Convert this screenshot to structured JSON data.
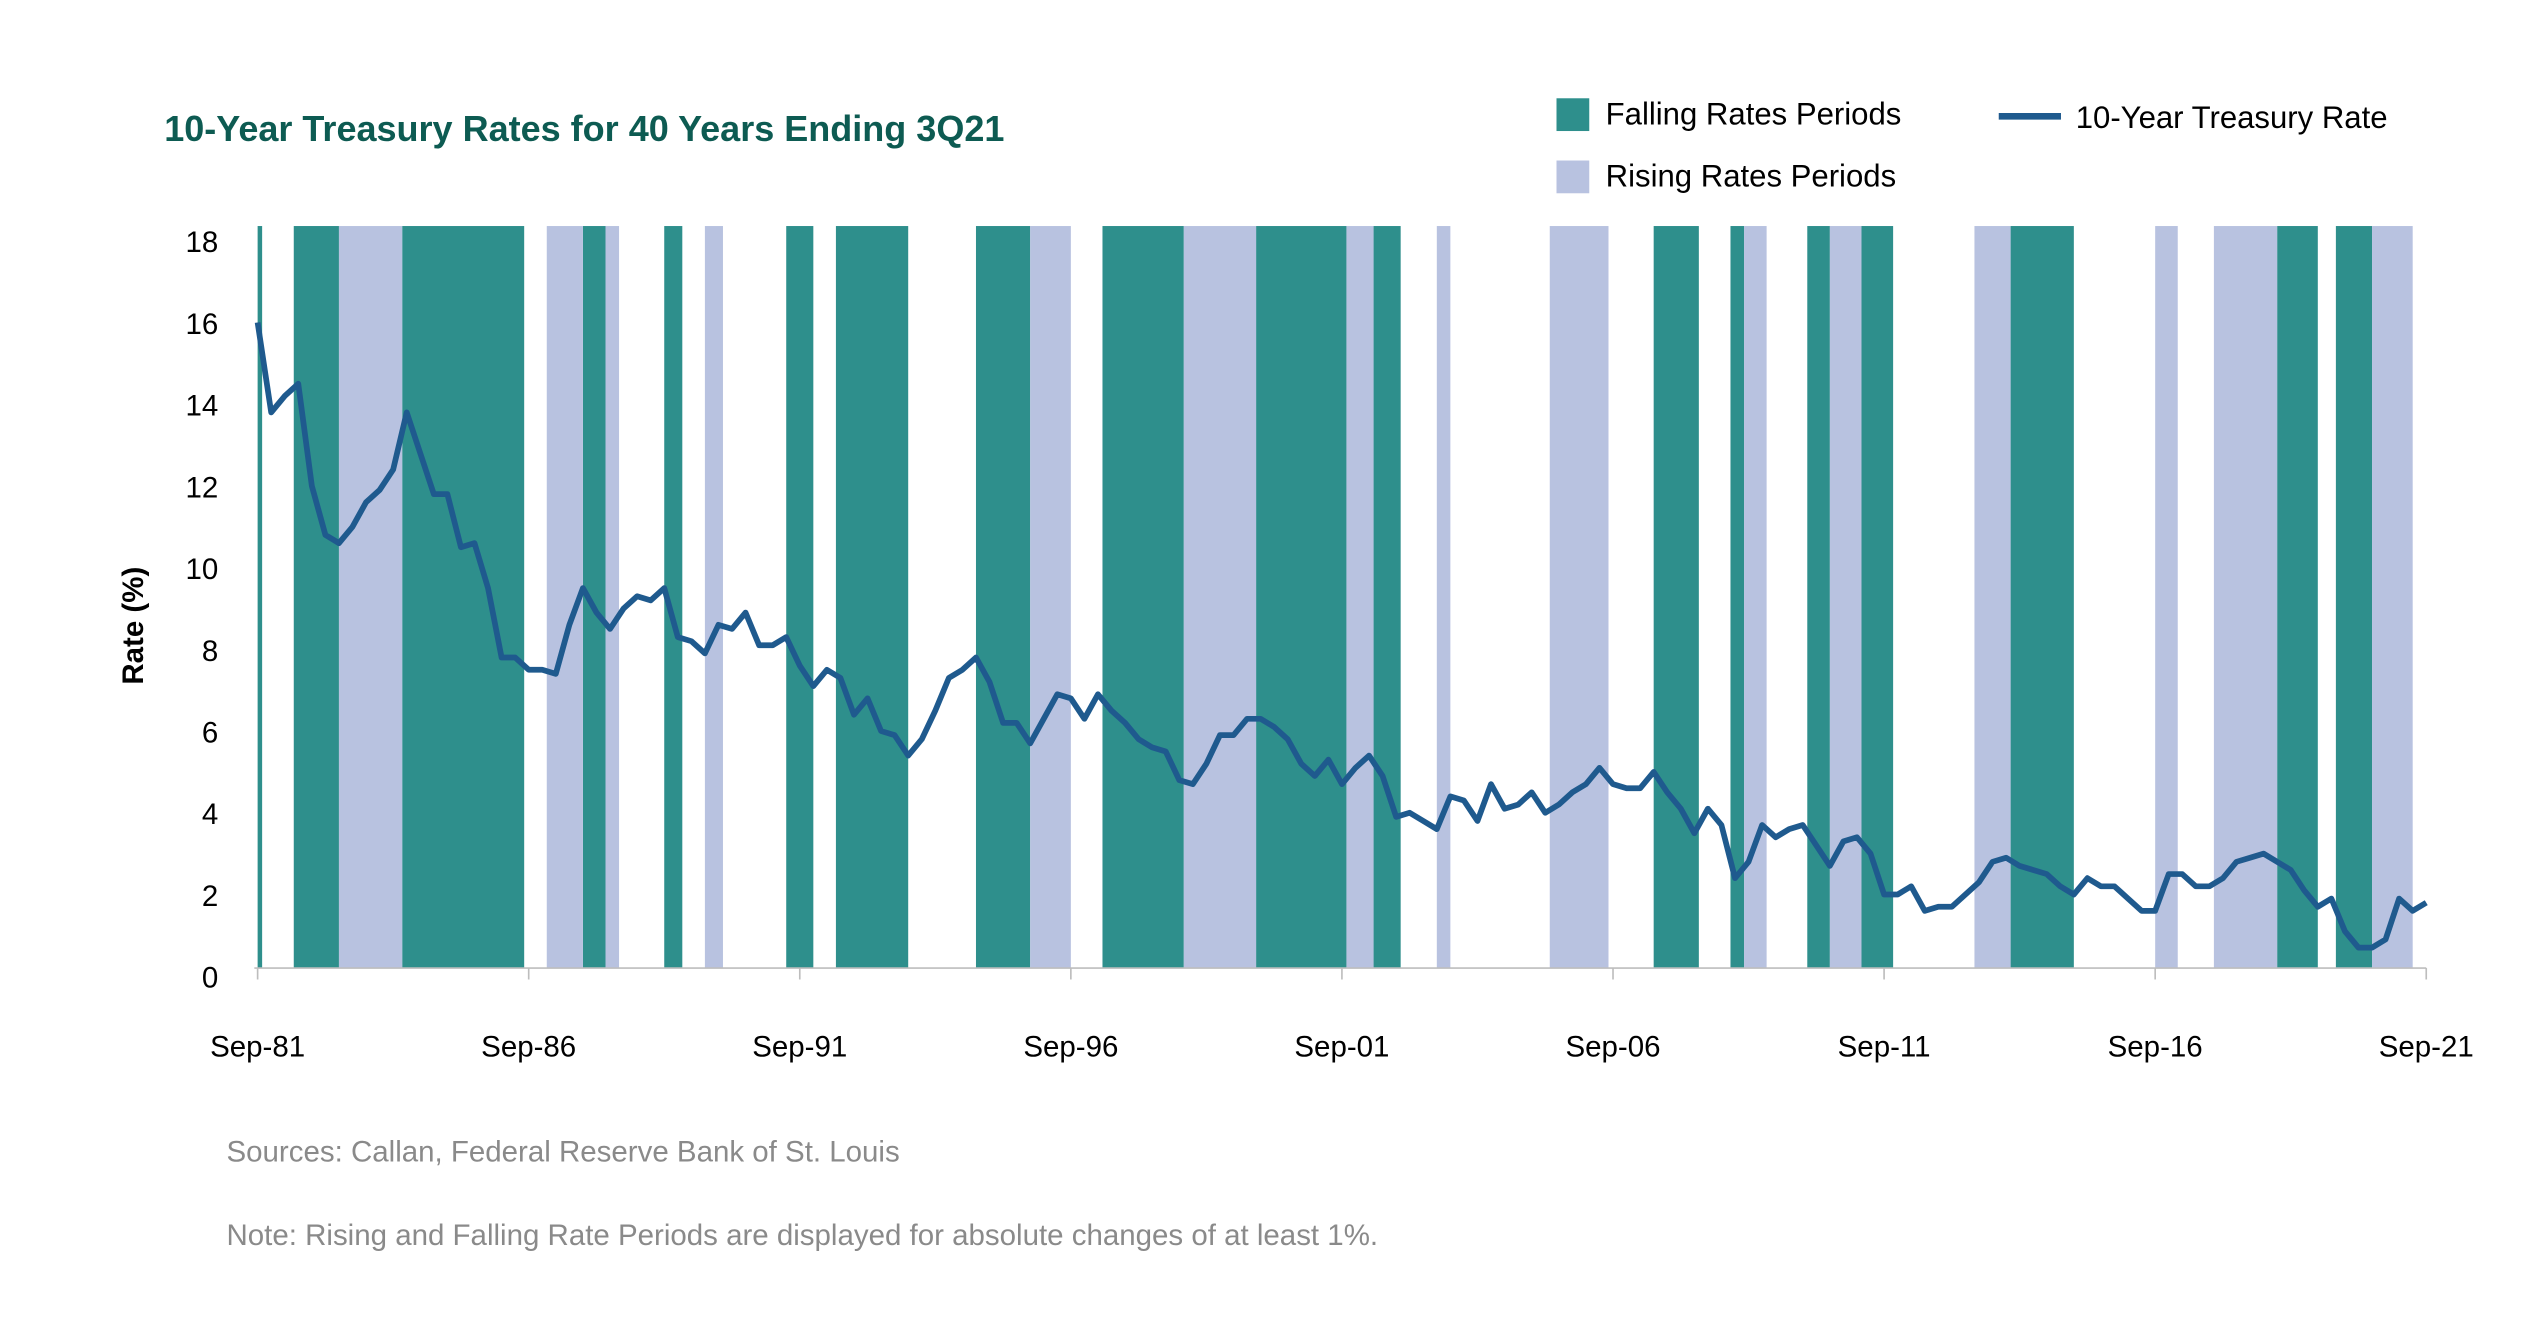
{
  "chart_data": {
    "type": "line",
    "title": "10-Year Treasury Rates for 40 Years Ending 3Q21",
    "y_label": "Rate (%)",
    "xlim": [
      "1981-09",
      "2021-09"
    ],
    "xticks": [
      {
        "value": "1981-09",
        "label": "Sep-81"
      },
      {
        "value": "1986-09",
        "label": "Sep-86"
      },
      {
        "value": "1991-09",
        "label": "Sep-91"
      },
      {
        "value": "1996-09",
        "label": "Sep-96"
      },
      {
        "value": "2001-09",
        "label": "Sep-01"
      },
      {
        "value": "2006-09",
        "label": "Sep-06"
      },
      {
        "value": "2011-09",
        "label": "Sep-11"
      },
      {
        "value": "2016-09",
        "label": "Sep-16"
      },
      {
        "value": "2021-09",
        "label": "Sep-21"
      }
    ],
    "ylim": [
      0,
      18
    ],
    "yticks": [
      0,
      2,
      4,
      6,
      8,
      10,
      12,
      14,
      16,
      18
    ],
    "x": [
      "1981-09",
      "1981-12",
      "1982-03",
      "1982-06",
      "1982-09",
      "1982-12",
      "1983-03",
      "1983-06",
      "1983-09",
      "1983-12",
      "1984-03",
      "1984-06",
      "1984-09",
      "1984-12",
      "1985-03",
      "1985-06",
      "1985-09",
      "1985-12",
      "1986-03",
      "1986-06",
      "1986-09",
      "1986-12",
      "1987-03",
      "1987-06",
      "1987-09",
      "1987-12",
      "1988-03",
      "1988-06",
      "1988-09",
      "1988-12",
      "1989-03",
      "1989-06",
      "1989-09",
      "1989-12",
      "1990-03",
      "1990-06",
      "1990-09",
      "1990-12",
      "1991-03",
      "1991-06",
      "1991-09",
      "1991-12",
      "1992-03",
      "1992-06",
      "1992-09",
      "1992-12",
      "1993-03",
      "1993-06",
      "1993-09",
      "1993-12",
      "1994-03",
      "1994-06",
      "1994-09",
      "1994-12",
      "1995-03",
      "1995-06",
      "1995-09",
      "1995-12",
      "1996-03",
      "1996-06",
      "1996-09",
      "1996-12",
      "1997-03",
      "1997-06",
      "1997-09",
      "1997-12",
      "1998-03",
      "1998-06",
      "1998-09",
      "1998-12",
      "1999-03",
      "1999-06",
      "1999-09",
      "1999-12",
      "2000-03",
      "2000-06",
      "2000-09",
      "2000-12",
      "2001-03",
      "2001-06",
      "2001-09",
      "2001-12",
      "2002-03",
      "2002-06",
      "2002-09",
      "2002-12",
      "2003-03",
      "2003-06",
      "2003-09",
      "2003-12",
      "2004-03",
      "2004-06",
      "2004-09",
      "2004-12",
      "2005-03",
      "2005-06",
      "2005-09",
      "2005-12",
      "2006-03",
      "2006-06",
      "2006-09",
      "2006-12",
      "2007-03",
      "2007-06",
      "2007-09",
      "2007-12",
      "2008-03",
      "2008-06",
      "2008-09",
      "2008-12",
      "2009-03",
      "2009-06",
      "2009-09",
      "2009-12",
      "2010-03",
      "2010-06",
      "2010-09",
      "2010-12",
      "2011-03",
      "2011-06",
      "2011-09",
      "2011-12",
      "2012-03",
      "2012-06",
      "2012-09",
      "2012-12",
      "2013-03",
      "2013-06",
      "2013-09",
      "2013-12",
      "2014-03",
      "2014-06",
      "2014-09",
      "2014-12",
      "2015-03",
      "2015-06",
      "2015-09",
      "2015-12",
      "2016-03",
      "2016-06",
      "2016-09",
      "2016-12",
      "2017-03",
      "2017-06",
      "2017-09",
      "2017-12",
      "2018-03",
      "2018-06",
      "2018-09",
      "2018-12",
      "2019-03",
      "2019-06",
      "2019-09",
      "2019-12",
      "2020-03",
      "2020-06",
      "2020-09",
      "2020-12",
      "2021-03",
      "2021-06",
      "2021-09"
    ],
    "series": [
      {
        "name": "10-Year Treasury Rate",
        "color": "#1f5a8e",
        "values": [
          16.0,
          13.8,
          14.2,
          14.5,
          12.0,
          10.8,
          10.6,
          11.0,
          11.6,
          11.9,
          12.4,
          13.8,
          12.8,
          11.8,
          11.8,
          10.5,
          10.6,
          9.5,
          7.8,
          7.8,
          7.5,
          7.5,
          7.4,
          8.6,
          9.5,
          8.9,
          8.5,
          9.0,
          9.3,
          9.2,
          9.5,
          8.3,
          8.2,
          7.9,
          8.6,
          8.5,
          8.9,
          8.1,
          8.1,
          8.3,
          7.6,
          7.1,
          7.5,
          7.3,
          6.4,
          6.8,
          6.0,
          5.9,
          5.4,
          5.8,
          6.5,
          7.3,
          7.5,
          7.8,
          7.2,
          6.2,
          6.2,
          5.7,
          6.3,
          6.9,
          6.8,
          6.3,
          6.9,
          6.5,
          6.2,
          5.8,
          5.6,
          5.5,
          4.8,
          4.7,
          5.2,
          5.9,
          5.9,
          6.3,
          6.3,
          6.1,
          5.8,
          5.2,
          4.9,
          5.3,
          4.7,
          5.1,
          5.4,
          4.9,
          3.9,
          4.0,
          3.8,
          3.6,
          4.4,
          4.3,
          3.8,
          4.7,
          4.1,
          4.2,
          4.5,
          4.0,
          4.2,
          4.5,
          4.7,
          5.1,
          4.7,
          4.6,
          4.6,
          5.0,
          4.5,
          4.1,
          3.5,
          4.1,
          3.7,
          2.4,
          2.8,
          3.7,
          3.4,
          3.6,
          3.7,
          3.2,
          2.7,
          3.3,
          3.4,
          3.0,
          2.0,
          2.0,
          2.2,
          1.6,
          1.7,
          1.7,
          2.0,
          2.3,
          2.8,
          2.9,
          2.7,
          2.6,
          2.5,
          2.2,
          2.0,
          2.4,
          2.2,
          2.2,
          1.9,
          1.6,
          1.6,
          2.5,
          2.5,
          2.2,
          2.2,
          2.4,
          2.8,
          2.9,
          3.0,
          2.8,
          2.6,
          2.1,
          1.7,
          1.9,
          1.1,
          0.7,
          0.7,
          0.9,
          1.9,
          1.6,
          1.8
        ]
      }
    ],
    "periods": [
      {
        "name": "Falling Rates Periods",
        "color": "#2e8f8c",
        "ranges": [
          [
            "1981-09",
            "1981-10"
          ],
          [
            "1982-05",
            "1983-03"
          ],
          [
            "1984-05",
            "1986-08"
          ],
          [
            "1987-09",
            "1988-02"
          ],
          [
            "1989-03",
            "1989-07"
          ],
          [
            "1991-06",
            "1991-12"
          ],
          [
            "1992-05",
            "1993-09"
          ],
          [
            "1994-12",
            "1995-12"
          ],
          [
            "1997-04",
            "1998-10"
          ],
          [
            "2000-02",
            "2001-10"
          ],
          [
            "2002-04",
            "2002-10"
          ],
          [
            "2007-06",
            "2008-04"
          ],
          [
            "2008-11",
            "2009-02"
          ],
          [
            "2010-04",
            "2010-09"
          ],
          [
            "2011-04",
            "2011-11"
          ],
          [
            "2014-01",
            "2015-03"
          ],
          [
            "2018-12",
            "2019-09"
          ],
          [
            "2020-01",
            "2020-09"
          ]
        ]
      },
      {
        "name": "Rising Rates Periods",
        "color": "#b8c2e0",
        "ranges": [
          [
            "1983-03",
            "1984-05"
          ],
          [
            "1987-01",
            "1987-09"
          ],
          [
            "1988-02",
            "1988-05"
          ],
          [
            "1989-12",
            "1990-04"
          ],
          [
            "1995-12",
            "1996-09"
          ],
          [
            "1998-10",
            "2000-02"
          ],
          [
            "2001-10",
            "2002-04"
          ],
          [
            "2003-06",
            "2003-09"
          ],
          [
            "2005-07",
            "2006-08"
          ],
          [
            "2009-02",
            "2009-07"
          ],
          [
            "2010-09",
            "2011-04"
          ],
          [
            "2013-05",
            "2014-01"
          ],
          [
            "2016-09",
            "2017-02"
          ],
          [
            "2017-10",
            "2018-12"
          ],
          [
            "2020-09",
            "2021-06"
          ]
        ]
      }
    ],
    "notes": [
      "Sources: Callan, Federal Reserve Bank of St. Louis",
      "Note: Rising and Falling Rate Periods are displayed for absolute changes of at least 1%."
    ]
  }
}
